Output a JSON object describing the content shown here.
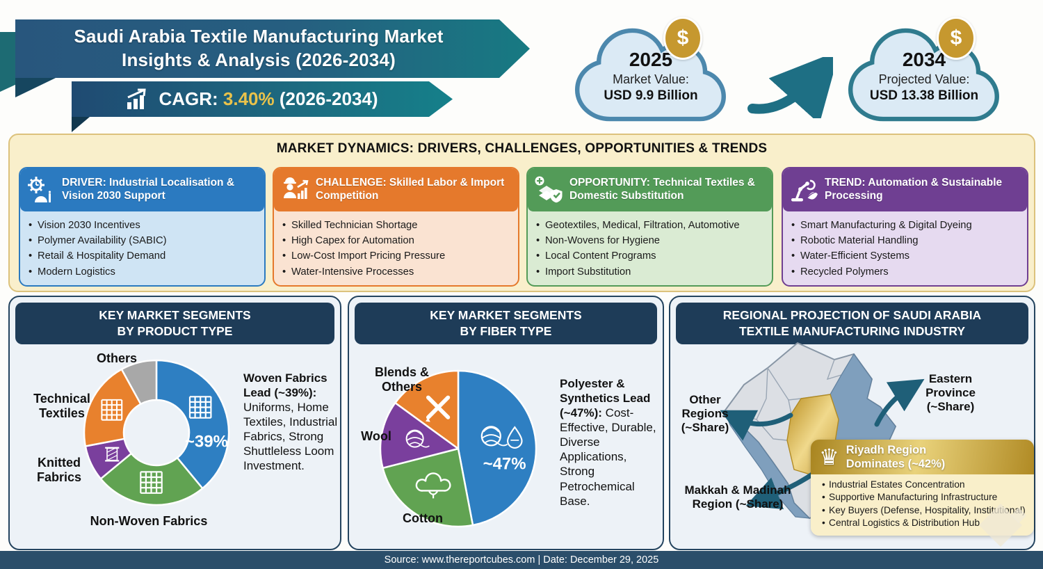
{
  "header": {
    "title_line1": "Saudi Arabia Textile Manufacturing Market",
    "title_line2": "Insights & Analysis (2026-2034)",
    "cagr_label": "CAGR:",
    "cagr_value": "3.40%",
    "cagr_period": "(2026-2034)",
    "accent_gold": "#e9c24b",
    "banner_navy": "#28567d",
    "banner_teal": "#177a82"
  },
  "clouds": [
    {
      "year": "2025",
      "label": "Market Value:",
      "value": "USD 9.9 Billion",
      "coin": "$",
      "border_color": "#4c88ad"
    },
    {
      "year": "2034",
      "label": "Projected Value:",
      "value": "USD 13.38 Billion",
      "coin": "$",
      "border_color": "#2f7b8e"
    }
  ],
  "dynamics": {
    "title": "MARKET DYNAMICS: DRIVERS, CHALLENGES, OPPORTUNITIES & TRENDS",
    "cards": [
      {
        "category": "driver",
        "title": "DRIVER: Industrial Localisation & Vision 2030 Support",
        "bullets": [
          "Vision 2030 Incentives",
          "Polymer Availability (SABIC)",
          "Retail & Hospitality Demand",
          "Modern Logistics"
        ],
        "colors": {
          "header": "#2b7ac0",
          "body": "#cfe4f4"
        }
      },
      {
        "category": "challenge",
        "title": "CHALLENGE: Skilled Labor & Import Competition",
        "bullets": [
          "Skilled Technician Shortage",
          "High Capex for Automation",
          "Low-Cost Import Pricing Pressure",
          "Water-Intensive Processes"
        ],
        "colors": {
          "header": "#e5792c",
          "body": "#fae3d2"
        }
      },
      {
        "category": "opportunity",
        "title": "OPPORTUNITY: Technical Textiles & Domestic Substitution",
        "bullets": [
          "Geotextiles, Medical, Filtration, Automotive",
          "Non-Wovens for Hygiene",
          "Local Content Programs",
          "Import Substitution"
        ],
        "colors": {
          "header": "#539b58",
          "body": "#daebd3"
        }
      },
      {
        "category": "trend",
        "title": "TREND: Automation & Sustainable Processing",
        "bullets": [
          "Smart Manufacturing & Digital Dyeing",
          "Robotic Material Handling",
          "Water-Efficient Systems",
          "Recycled Polymers"
        ],
        "colors": {
          "header": "#6f3f92",
          "body": "#e6daf0"
        }
      }
    ]
  },
  "panels": {
    "product": {
      "title_line1": "KEY MARKET SEGMENTS",
      "title_line2": "BY PRODUCT TYPE",
      "callout": "~39%",
      "labels": {
        "others": "Others",
        "technical": "Technical Textiles",
        "knitted": "Knitted Fabrics",
        "nonwoven": "Non-Woven Fabrics"
      },
      "side_lead": "Woven Fabrics Lead (~39%):",
      "side_body": "Uniforms, Home Textiles, Industrial Fabrics, Strong Shuttleless Loom Investment."
    },
    "fiber": {
      "title_line1": "KEY MARKET SEGMENTS",
      "title_line2": "BY FIBER TYPE",
      "callout": "~47%",
      "labels": {
        "blends": "Blends & Others",
        "wool": "Wool",
        "cotton": "Cotton"
      },
      "side_lead": "Polyester & Synthetics Lead (~47%):",
      "side_body": "Cost-Effective, Durable, Diverse Applications, Strong Petrochemical Base."
    },
    "regional": {
      "title_line1": "REGIONAL PROJECTION OF SAUDI ARABIA",
      "title_line2": "TEXTILE MANUFACTURING INDUSTRY",
      "map_labels": {
        "other": "Other Regions (~Share)",
        "eastern": "Eastern Province (~Share)",
        "makkah": "Makkah & Madinah Region (~Share)"
      },
      "riyadh": {
        "crown": "♛",
        "title_line1": "Riyadh Region",
        "title_line2": "Dominates (~42%)",
        "bullets": [
          "Industrial Estates Concentration",
          "Supportive Manufacturing Infrastructure",
          "Key Buyers (Defense, Hospitality, Institutional)",
          "Central Logistics & Distribution Hub"
        ],
        "gold_color": "#c59a33"
      }
    }
  },
  "chart_data": [
    {
      "type": "pie",
      "subtype": "donut",
      "title": "Key Market Segments by Product Type",
      "callout": "~39%",
      "legend_position": "around-chart",
      "segments": [
        {
          "label": "Woven Fabrics",
          "value": 39,
          "color": "#2e7fc2",
          "icon": "hash"
        },
        {
          "label": "Non-Woven Fabrics",
          "value": 25,
          "color": "#61a352",
          "icon": "hash"
        },
        {
          "label": "Knitted Fabrics",
          "value": 8,
          "color": "#7a3f9d",
          "icon": "knit"
        },
        {
          "label": "Technical Textiles",
          "value": 20,
          "color": "#e8812d",
          "icon": "hash"
        },
        {
          "label": "Others",
          "value": 8,
          "color": "#a8a8a8",
          "icon": "none"
        }
      ]
    },
    {
      "type": "pie",
      "subtype": "full",
      "title": "Key Market Segments by Fiber Type",
      "callout": "~47%",
      "legend_position": "around-chart",
      "segments": [
        {
          "label": "Polyester & Synthetics",
          "value": 47,
          "color": "#2e7fc2",
          "icon": "yarn-droplet"
        },
        {
          "label": "Cotton",
          "value": 24,
          "color": "#61a352",
          "icon": "cotton"
        },
        {
          "label": "Wool",
          "value": 14,
          "color": "#7a3f9d",
          "icon": "yarn"
        },
        {
          "label": "Blends & Others",
          "value": 15,
          "color": "#e8812d",
          "icon": "tools"
        }
      ]
    },
    {
      "type": "map",
      "title": "Regional Projection of Saudi Arabia Textile Manufacturing Industry",
      "regions": [
        {
          "label": "Riyadh Region",
          "value": "~42%",
          "color": "#c59a33"
        },
        {
          "label": "Eastern Province",
          "value": "~Share",
          "color": "#7f9fbd"
        },
        {
          "label": "Makkah & Madinah Region",
          "value": "~Share",
          "color": "#7f9fbd"
        },
        {
          "label": "Other Regions",
          "value": "~Share",
          "color": "#dcdfe4"
        }
      ]
    }
  ],
  "footer": {
    "text": "Source: www.thereportcubes.com | Date: December 29, 2025"
  }
}
